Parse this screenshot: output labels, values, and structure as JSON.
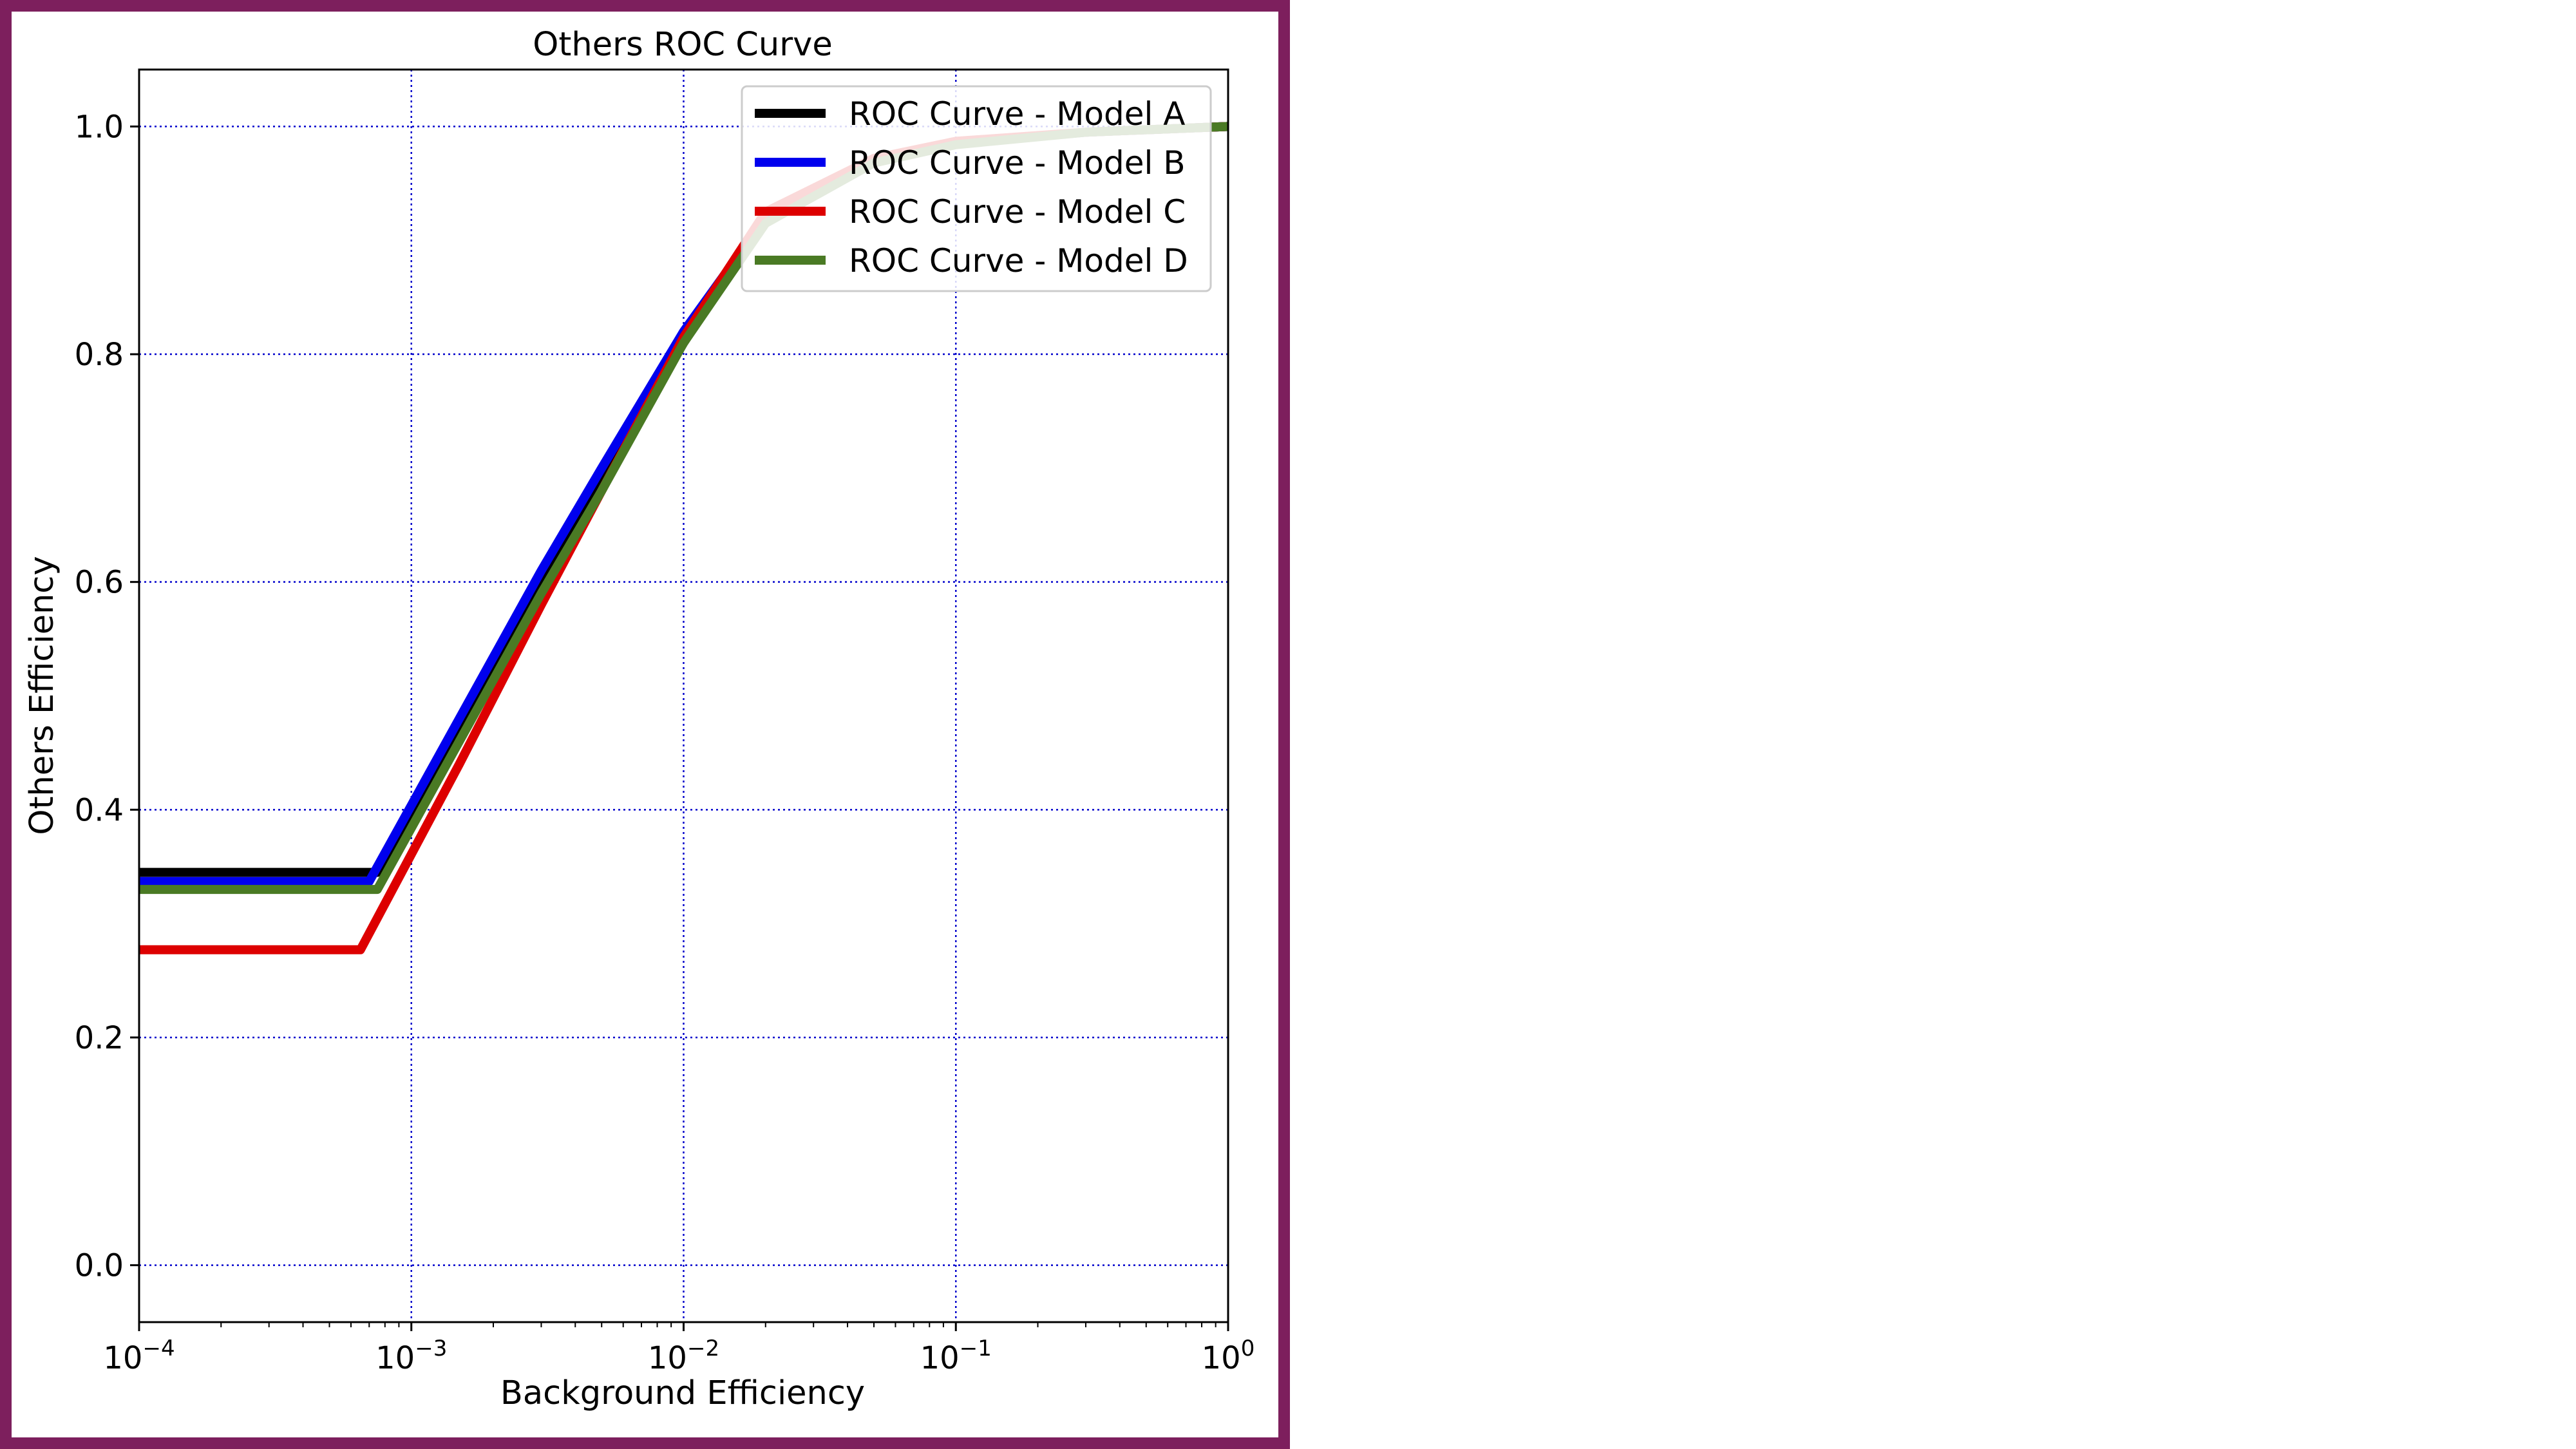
{
  "chart_data": {
    "type": "line",
    "title": "Others ROC Curve",
    "xlabel": "Background Efficiency",
    "ylabel": "Others Efficiency",
    "xscale": "log",
    "xlim": [
      0.0001,
      1
    ],
    "ylim": [
      -0.05,
      1.05
    ],
    "x_ticks": [
      0.0001,
      0.001,
      0.01,
      0.1,
      1
    ],
    "x_tick_base": "10",
    "x_tick_exponents": [
      "−4",
      "−3",
      "−2",
      "−1",
      "0"
    ],
    "y_ticks": [
      0.0,
      0.2,
      0.4,
      0.6,
      0.8,
      1.0
    ],
    "y_tick_labels": [
      "0.0",
      "0.2",
      "0.4",
      "0.6",
      "0.8",
      "1.0"
    ],
    "grid": true,
    "grid_color": "#0000cc",
    "legend_position": "top-right",
    "series": [
      {
        "name": "ROC Curve - Model A",
        "color": "#000000",
        "x": [
          0.0001,
          0.00075,
          0.0015,
          0.003,
          0.005,
          0.01,
          0.02,
          0.05,
          0.1,
          0.3,
          1
        ],
        "y": [
          0.345,
          0.345,
          0.47,
          0.6,
          0.69,
          0.81,
          0.92,
          0.97,
          0.985,
          0.995,
          1.0
        ]
      },
      {
        "name": "ROC Curve - Model B",
        "color": "#0000ee",
        "x": [
          0.0001,
          0.0007,
          0.0015,
          0.003,
          0.005,
          0.01,
          0.02,
          0.05,
          0.1,
          0.3,
          1
        ],
        "y": [
          0.337,
          0.337,
          0.48,
          0.61,
          0.7,
          0.82,
          0.92,
          0.97,
          0.985,
          0.995,
          1.0
        ]
      },
      {
        "name": "ROC Curve - Model C",
        "color": "#dd0000",
        "x": [
          0.0001,
          0.00065,
          0.0015,
          0.003,
          0.005,
          0.01,
          0.02,
          0.05,
          0.1,
          0.3,
          1
        ],
        "y": [
          0.277,
          0.277,
          0.44,
          0.58,
          0.68,
          0.815,
          0.925,
          0.972,
          0.987,
          0.995,
          1.0
        ]
      },
      {
        "name": "ROC Curve - Model D",
        "color": "#4a7a24",
        "x": [
          0.0001,
          0.00075,
          0.0015,
          0.003,
          0.005,
          0.01,
          0.02,
          0.05,
          0.1,
          0.3,
          1
        ],
        "y": [
          0.33,
          0.33,
          0.46,
          0.59,
          0.68,
          0.81,
          0.915,
          0.968,
          0.984,
          0.995,
          1.0
        ]
      }
    ]
  }
}
